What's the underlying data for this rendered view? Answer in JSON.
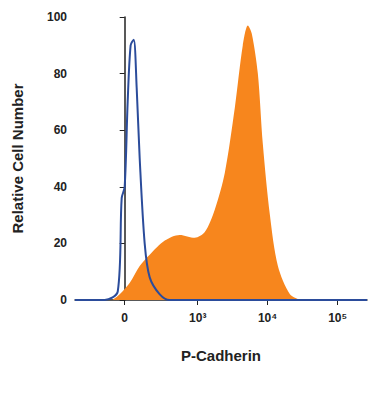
{
  "chart_data": {
    "type": "histogram",
    "xlabel": "P-Cadherin",
    "ylabel": "Relative Cell Number",
    "xlim": [
      -450,
      262144
    ],
    "xticks": [
      0,
      {
        "value": 1000,
        "label": "10³"
      },
      {
        "value": 10000,
        "label": "10⁴"
      },
      {
        "value": 100000,
        "label": "10⁵"
      }
    ],
    "ylim": [
      0,
      100
    ],
    "yticks": [
      0,
      20,
      40,
      60,
      80,
      100
    ],
    "grid": false,
    "series": [
      {
        "type": "area",
        "color": "#f7861d",
        "x": [
          -74,
          -30,
          30,
          94,
          168,
          317,
          542,
          906,
          1265,
          1764,
          2453,
          3411,
          4430,
          5234,
          5966,
          7265,
          8564,
          10797,
          14036,
          20844,
          28914
        ],
        "values": [
          0,
          2,
          6,
          12,
          16,
          21,
          23,
          22,
          24,
          32,
          45,
          68,
          90,
          97,
          94,
          80,
          55,
          30,
          12,
          2,
          0
        ]
      },
      {
        "type": "line",
        "color": "#2b4c9b",
        "x": [
          -450,
          -129,
          -42,
          -18,
          0,
          18,
          36,
          55,
          74,
          94,
          129,
          168,
          261,
          381,
          262144
        ],
        "values": [
          0,
          0,
          3,
          36,
          40,
          70,
          90,
          92,
          75,
          50,
          20,
          8,
          2,
          0,
          0
        ]
      }
    ]
  }
}
